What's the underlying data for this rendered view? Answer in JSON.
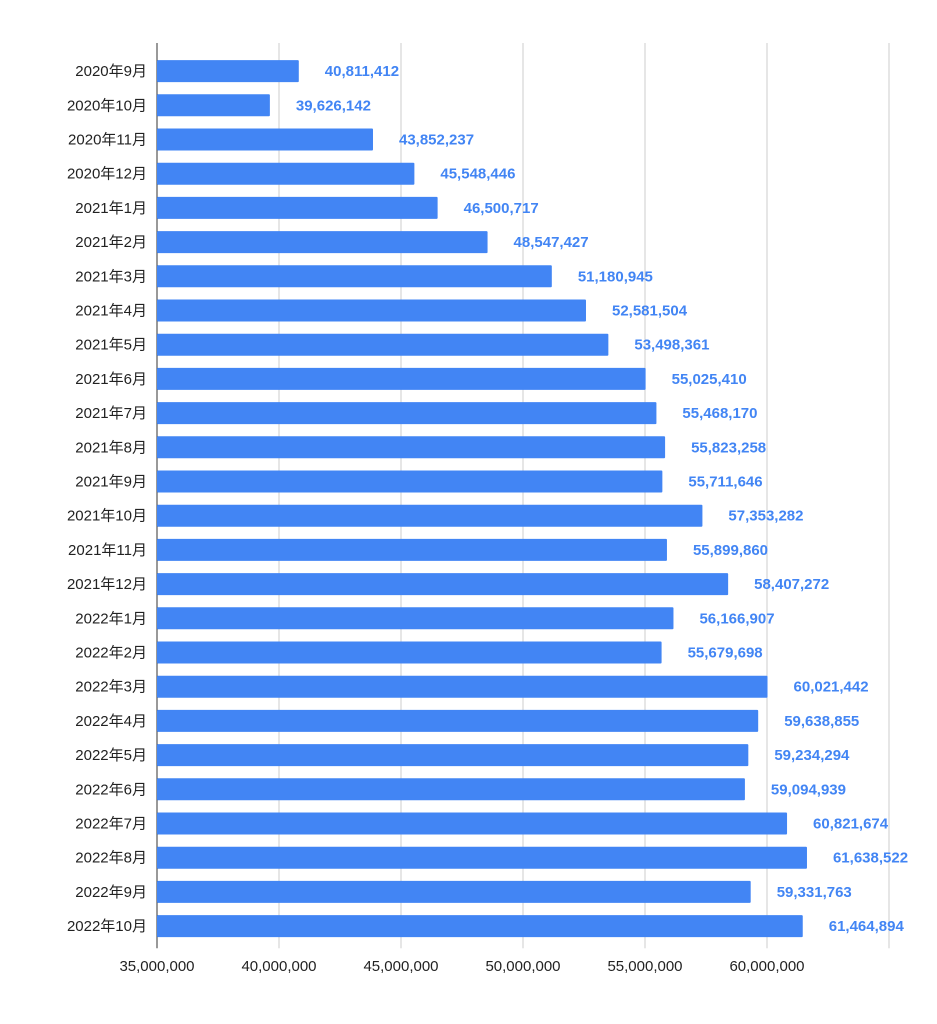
{
  "chart_data": {
    "type": "bar",
    "orientation": "horizontal",
    "title": "",
    "xlabel": "",
    "ylabel": "",
    "xlim": [
      35000000,
      65000000
    ],
    "grid": true,
    "legend": "none",
    "bar_color": "#4285f4",
    "label_color": "#4285f4",
    "categories": [
      "2020年9月",
      "2020年10月",
      "2020年11月",
      "2020年12月",
      "2021年1月",
      "2021年2月",
      "2021年3月",
      "2021年4月",
      "2021年5月",
      "2021年6月",
      "2021年7月",
      "2021年8月",
      "2021年9月",
      "2021年10月",
      "2021年11月",
      "2021年12月",
      "2022年1月",
      "2022年2月",
      "2022年3月",
      "2022年4月",
      "2022年5月",
      "2022年6月",
      "2022年7月",
      "2022年8月",
      "2022年9月",
      "2022年10月"
    ],
    "values": [
      40811412,
      39626142,
      43852237,
      45548446,
      46500717,
      48547427,
      51180945,
      52581504,
      53498361,
      55025410,
      55468170,
      55823258,
      55711646,
      57353282,
      55899860,
      58407272,
      56166907,
      55679698,
      60021442,
      59638855,
      59234294,
      59094939,
      60821674,
      61638522,
      59331763,
      61464894
    ],
    "data_labels": [
      "40,811,412",
      "39,626,142",
      "43,852,237",
      "45,548,446",
      "46,500,717",
      "48,547,427",
      "51,180,945",
      "52,581,504",
      "53,498,361",
      "55,025,410",
      "55,468,170",
      "55,823,258",
      "55,711,646",
      "57,353,282",
      "55,899,860",
      "58,407,272",
      "56,166,907",
      "55,679,698",
      "60,021,442",
      "59,638,855",
      "59,234,294",
      "59,094,939",
      "60,821,674",
      "61,638,522",
      "59,331,763",
      "61,464,894"
    ],
    "x_ticks": [
      35000000,
      40000000,
      45000000,
      50000000,
      55000000,
      60000000
    ],
    "x_tick_labels": [
      "35,000,000",
      "40,000,000",
      "45,000,000",
      "50,000,000",
      "55,000,000",
      "60,000,000"
    ],
    "extra_gridlines": [
      65000000
    ]
  }
}
